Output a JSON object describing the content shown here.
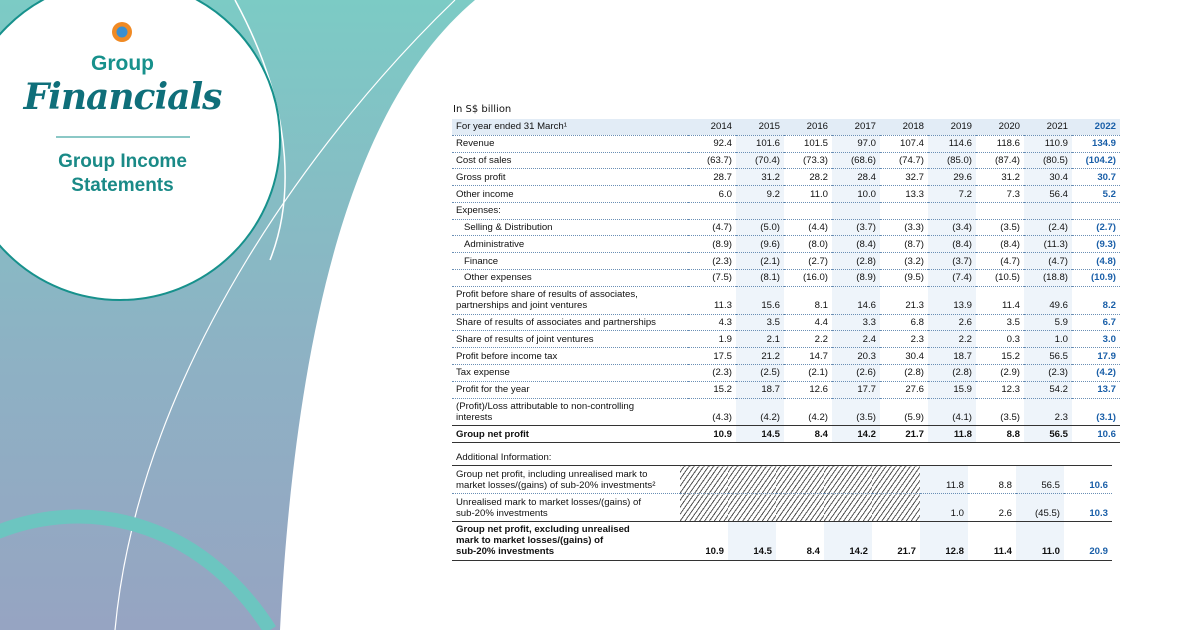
{
  "sidebar": {
    "title": "Group",
    "script_title": "Financials",
    "subtitle": "Group Income\nStatements"
  },
  "table": {
    "unit": "In S$ billion",
    "header": {
      "label": "For year ended 31 March¹",
      "years": [
        "2014",
        "2015",
        "2016",
        "2017",
        "2018",
        "2019",
        "2020",
        "2021",
        "2022"
      ]
    },
    "rows": [
      {
        "label": "Revenue",
        "values": [
          "92.4",
          "101.6",
          "101.5",
          "97.0",
          "107.4",
          "114.6",
          "118.6",
          "110.9",
          "134.9"
        ]
      },
      {
        "label": "Cost of sales",
        "values": [
          "(63.7)",
          "(70.4)",
          "(73.3)",
          "(68.6)",
          "(74.7)",
          "(85.0)",
          "(87.4)",
          "(80.5)",
          "(104.2)"
        ]
      },
      {
        "label": "Gross profit",
        "values": [
          "28.7",
          "31.2",
          "28.2",
          "28.4",
          "32.7",
          "29.6",
          "31.2",
          "30.4",
          "30.7"
        ]
      },
      {
        "label": "Other income",
        "values": [
          "6.0",
          "9.2",
          "11.0",
          "10.0",
          "13.3",
          "7.2",
          "7.3",
          "56.4",
          "5.2"
        ]
      },
      {
        "label": "Expenses:"
      },
      {
        "label": "Selling & Distribution",
        "indent": true,
        "values": [
          "(4.7)",
          "(5.0)",
          "(4.4)",
          "(3.7)",
          "(3.3)",
          "(3.4)",
          "(3.5)",
          "(2.4)",
          "(2.7)"
        ]
      },
      {
        "label": "Administrative",
        "indent": true,
        "values": [
          "(8.9)",
          "(9.6)",
          "(8.0)",
          "(8.4)",
          "(8.7)",
          "(8.4)",
          "(8.4)",
          "(11.3)",
          "(9.3)"
        ]
      },
      {
        "label": "Finance",
        "indent": true,
        "values": [
          "(2.3)",
          "(2.1)",
          "(2.7)",
          "(2.8)",
          "(3.2)",
          "(3.7)",
          "(4.7)",
          "(4.7)",
          "(4.8)"
        ]
      },
      {
        "label": "Other expenses",
        "indent": true,
        "values": [
          "(7.5)",
          "(8.1)",
          "(16.0)",
          "(8.9)",
          "(9.5)",
          "(7.4)",
          "(10.5)",
          "(18.8)",
          "(10.9)"
        ]
      },
      {
        "label": "Profit before share of results of associates,\npartnerships and joint ventures",
        "values": [
          "11.3",
          "15.6",
          "8.1",
          "14.6",
          "21.3",
          "13.9",
          "11.4",
          "49.6",
          "8.2"
        ]
      },
      {
        "label": "Share of results of associates and partnerships",
        "values": [
          "4.3",
          "3.5",
          "4.4",
          "3.3",
          "6.8",
          "2.6",
          "3.5",
          "5.9",
          "6.7"
        ]
      },
      {
        "label": "Share of results of joint ventures",
        "values": [
          "1.9",
          "2.1",
          "2.2",
          "2.4",
          "2.3",
          "2.2",
          "0.3",
          "1.0",
          "3.0"
        ]
      },
      {
        "label": "Profit before income tax",
        "values": [
          "17.5",
          "21.2",
          "14.7",
          "20.3",
          "30.4",
          "18.7",
          "15.2",
          "56.5",
          "17.9"
        ]
      },
      {
        "label": "Tax expense",
        "values": [
          "(2.3)",
          "(2.5)",
          "(2.1)",
          "(2.6)",
          "(2.8)",
          "(2.8)",
          "(2.9)",
          "(2.3)",
          "(4.2)"
        ]
      },
      {
        "label": "Profit for the year",
        "values": [
          "15.2",
          "18.7",
          "12.6",
          "17.7",
          "27.6",
          "15.9",
          "12.3",
          "54.2",
          "13.7"
        ]
      },
      {
        "label": "(Profit)/Loss attributable to non-controlling\ninterests",
        "values": [
          "(4.3)",
          "(4.2)",
          "(4.2)",
          "(3.5)",
          "(5.9)",
          "(4.1)",
          "(3.5)",
          "2.3",
          "(3.1)"
        ]
      },
      {
        "label": "Group net profit",
        "bold": true,
        "values": [
          "10.9",
          "14.5",
          "8.4",
          "14.2",
          "21.7",
          "11.8",
          "8.8",
          "56.5",
          "10.6"
        ]
      }
    ]
  },
  "additional": {
    "title": "Additional Information:",
    "rows": [
      {
        "label": "Group net profit, including unrealised mark to\nmarket losses/(gains) of sub-20% investments²",
        "values": [
          null,
          null,
          null,
          null,
          null,
          "11.8",
          "8.8",
          "56.5",
          "10.6"
        ]
      },
      {
        "label": "Unrealised mark to market losses/(gains) of\nsub-20% investments",
        "values": [
          null,
          null,
          null,
          null,
          null,
          "1.0",
          "2.6",
          "(45.5)",
          "10.3"
        ]
      },
      {
        "label": "Group net profit, excluding unrealised\nmark to market losses/(gains) of\nsub-20% investments",
        "bold": true,
        "values": [
          "10.9",
          "14.5",
          "8.4",
          "14.2",
          "21.7",
          "12.8",
          "11.4",
          "11.0",
          "20.9"
        ]
      }
    ]
  }
}
